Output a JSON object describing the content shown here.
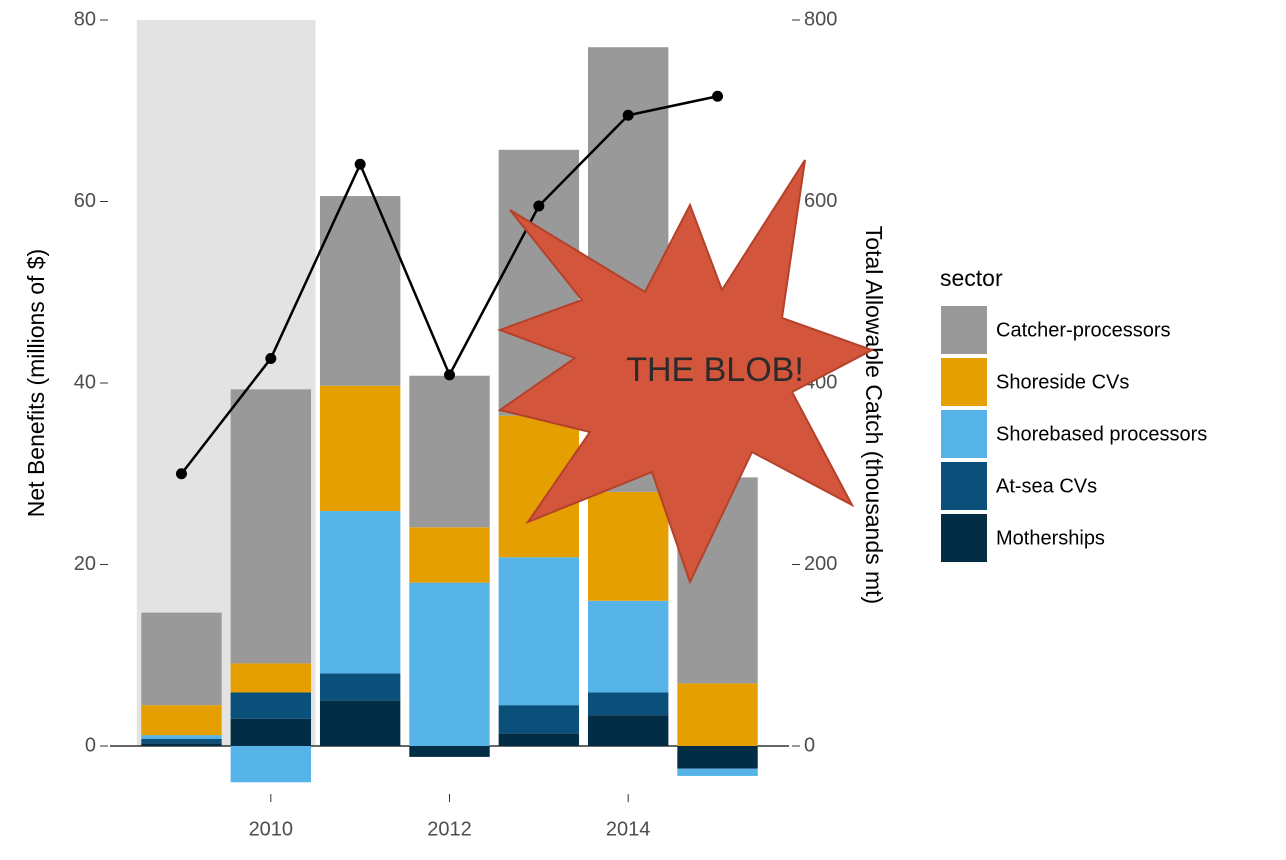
{
  "chart_data": {
    "type": "bar",
    "x": [
      2009,
      2010,
      2011,
      2012,
      2013,
      2014,
      2015
    ],
    "xlim": [
      2008.2,
      2015.8
    ],
    "xticks": [
      2010,
      2012,
      2014
    ],
    "ylim": [
      0,
      80
    ],
    "yticks": [
      0,
      20,
      40,
      60,
      80
    ],
    "y2lim": [
      0,
      800
    ],
    "y2ticks": [
      0,
      200,
      400,
      600,
      800
    ],
    "y_label": "Net Benefits (millions of $)",
    "y2_label": "Total Allowable Catch (thousands mt)",
    "legend_title": "sector",
    "highlight": {
      "xlim": [
        2008.5,
        2010.5
      ],
      "ylim": [
        0,
        80
      ],
      "color": "#e3e3e3"
    },
    "annotation": "THE BLOB!",
    "series": [
      {
        "name": "Motherships",
        "color": "#032d45",
        "values": [
          0.3,
          3.0,
          5.0,
          -1.2,
          1.4,
          3.4,
          -2.5
        ]
      },
      {
        "name": "At-sea CVs",
        "color": "#0a507a",
        "values": [
          0.5,
          2.9,
          3.0,
          0,
          3.1,
          2.5,
          0
        ]
      },
      {
        "name": "Shorebased processors",
        "color": "#56b4e9",
        "values": [
          0.4,
          -4.0,
          17.9,
          18.0,
          16.3,
          10.1,
          -0.8
        ]
      },
      {
        "name": "Shoreside CVs",
        "color": "#e69f00",
        "values": [
          3.3,
          3.2,
          13.8,
          6.1,
          15.6,
          12.0,
          6.9
        ]
      },
      {
        "name": "Catcher-processors",
        "color": "#999999",
        "values": [
          10.2,
          30.2,
          20.9,
          16.7,
          29.3,
          49.0,
          22.7
        ]
      }
    ],
    "line": {
      "type": "line",
      "axis": "y2",
      "color": "#000000",
      "values": [
        300,
        427,
        641,
        409,
        595,
        695,
        716
      ]
    }
  }
}
